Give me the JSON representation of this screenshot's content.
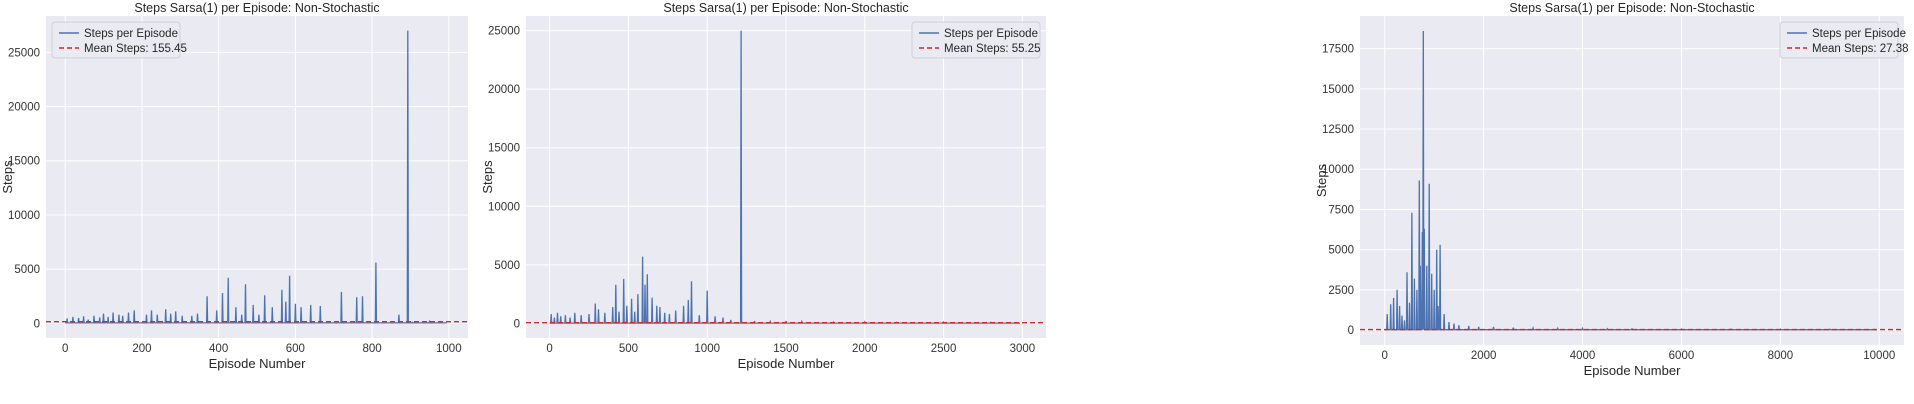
{
  "chart_data": [
    {
      "type": "line",
      "title": "Steps Sarsa(1) per Episode: Non-Stochastic",
      "xlabel": "Episode Number",
      "ylabel": "Steps",
      "xlim": [
        -50,
        1050
      ],
      "ylim": [
        -1350,
        28350
      ],
      "xticks": [
        0,
        200,
        400,
        600,
        800,
        1000
      ],
      "yticks": [
        0,
        5000,
        10000,
        15000,
        20000,
        25000
      ],
      "grid": true,
      "legend_position": "top-left",
      "series": [
        {
          "name": "Steps per Episode",
          "color": "#4c72b0",
          "baseline": 40,
          "spikes": [
            [
              5,
              450
            ],
            [
              20,
              600
            ],
            [
              35,
              500
            ],
            [
              48,
              650
            ],
            [
              60,
              350
            ],
            [
              75,
              700
            ],
            [
              90,
              550
            ],
            [
              100,
              900
            ],
            [
              112,
              600
            ],
            [
              125,
              1000
            ],
            [
              140,
              800
            ],
            [
              150,
              700
            ],
            [
              165,
              1000
            ],
            [
              180,
              1200
            ],
            [
              212,
              800
            ],
            [
              225,
              1200
            ],
            [
              240,
              800
            ],
            [
              262,
              1300
            ],
            [
              275,
              900
            ],
            [
              288,
              1100
            ],
            [
              305,
              700
            ],
            [
              330,
              700
            ],
            [
              345,
              900
            ],
            [
              370,
              2500
            ],
            [
              395,
              1200
            ],
            [
              410,
              2800
            ],
            [
              425,
              4200
            ],
            [
              445,
              1500
            ],
            [
              460,
              800
            ],
            [
              470,
              3600
            ],
            [
              490,
              1700
            ],
            [
              505,
              800
            ],
            [
              520,
              2600
            ],
            [
              540,
              1500
            ],
            [
              565,
              3100
            ],
            [
              575,
              2000
            ],
            [
              585,
              4400
            ],
            [
              600,
              1800
            ],
            [
              615,
              1500
            ],
            [
              640,
              1700
            ],
            [
              665,
              1600
            ],
            [
              720,
              2900
            ],
            [
              760,
              2400
            ],
            [
              775,
              2500
            ],
            [
              810,
              5600
            ],
            [
              870,
              800
            ],
            [
              893,
              27000
            ],
            [
              905,
              100
            ],
            [
              950,
              250
            ]
          ]
        },
        {
          "name": "Mean Steps: 155.45",
          "color": "#d62728",
          "style": "dashed",
          "value": 155.45
        }
      ]
    },
    {
      "type": "line",
      "title": "Steps Sarsa(1) per Episode: Non-Stochastic",
      "xlabel": "Episode Number",
      "ylabel": "Steps",
      "xlim": [
        -150,
        3150
      ],
      "ylim": [
        -1250,
        26250
      ],
      "xticks": [
        0,
        500,
        1000,
        1500,
        2000,
        2500,
        3000
      ],
      "yticks": [
        0,
        5000,
        10000,
        15000,
        20000,
        25000
      ],
      "grid": true,
      "legend_position": "top-right",
      "series": [
        {
          "name": "Steps per Episode",
          "color": "#4c72b0",
          "baseline": 20,
          "spikes": [
            [
              10,
              800
            ],
            [
              30,
              500
            ],
            [
              50,
              900
            ],
            [
              70,
              600
            ],
            [
              100,
              700
            ],
            [
              130,
              500
            ],
            [
              160,
              900
            ],
            [
              200,
              700
            ],
            [
              250,
              800
            ],
            [
              290,
              1700
            ],
            [
              310,
              1200
            ],
            [
              350,
              900
            ],
            [
              400,
              1400
            ],
            [
              420,
              3300
            ],
            [
              440,
              1000
            ],
            [
              470,
              3800
            ],
            [
              490,
              1500
            ],
            [
              520,
              2100
            ],
            [
              540,
              1000
            ],
            [
              560,
              2500
            ],
            [
              590,
              5700
            ],
            [
              605,
              3300
            ],
            [
              620,
              4200
            ],
            [
              650,
              2200
            ],
            [
              680,
              1500
            ],
            [
              700,
              1400
            ],
            [
              730,
              900
            ],
            [
              760,
              800
            ],
            [
              800,
              1100
            ],
            [
              850,
              1500
            ],
            [
              880,
              2000
            ],
            [
              900,
              3600
            ],
            [
              950,
              700
            ],
            [
              1000,
              2800
            ],
            [
              1050,
              600
            ],
            [
              1100,
              500
            ],
            [
              1150,
              300
            ],
            [
              1215,
              25000
            ],
            [
              1300,
              200
            ],
            [
              1400,
              150
            ],
            [
              1500,
              200
            ],
            [
              1600,
              150
            ],
            [
              1800,
              100
            ],
            [
              2000,
              120
            ],
            [
              2200,
              80
            ],
            [
              2500,
              100
            ],
            [
              2800,
              80
            ]
          ]
        },
        {
          "name": "Mean Steps: 55.25",
          "color": "#d62728",
          "style": "dashed",
          "value": 55.25
        }
      ]
    },
    {
      "type": "line",
      "title": "Steps Sarsa(1) per Episode: Non-Stochastic",
      "xlabel": "Episode Number",
      "ylabel": "Steps",
      "xlim": [
        -500,
        10500
      ],
      "ylim": [
        -930,
        19530
      ],
      "xticks": [
        0,
        2000,
        4000,
        6000,
        8000,
        10000
      ],
      "yticks": [
        0,
        2500,
        5000,
        7500,
        10000,
        12500,
        15000,
        17500
      ],
      "grid": true,
      "legend_position": "top-right",
      "series": [
        {
          "name": "Steps per Episode",
          "color": "#4c72b0",
          "baseline": 20,
          "spikes": [
            [
              50,
              1000
            ],
            [
              120,
              1600
            ],
            [
              180,
              2000
            ],
            [
              250,
              2500
            ],
            [
              300,
              1500
            ],
            [
              350,
              900
            ],
            [
              400,
              600
            ],
            [
              450,
              3600
            ],
            [
              500,
              1700
            ],
            [
              550,
              7300
            ],
            [
              600,
              3200
            ],
            [
              650,
              2500
            ],
            [
              700,
              9300
            ],
            [
              720,
              4000
            ],
            [
              760,
              6100
            ],
            [
              780,
              18600
            ],
            [
              800,
              6300
            ],
            [
              850,
              4000
            ],
            [
              900,
              9100
            ],
            [
              950,
              3500
            ],
            [
              1000,
              2500
            ],
            [
              1050,
              5000
            ],
            [
              1080,
              1500
            ],
            [
              1120,
              5300
            ],
            [
              1200,
              1000
            ],
            [
              1300,
              500
            ],
            [
              1400,
              400
            ],
            [
              1500,
              300
            ],
            [
              1700,
              250
            ],
            [
              1900,
              200
            ],
            [
              2200,
              200
            ],
            [
              2600,
              150
            ],
            [
              3000,
              120
            ],
            [
              3500,
              100
            ],
            [
              4000,
              100
            ],
            [
              4500,
              80
            ],
            [
              5000,
              80
            ],
            [
              6000,
              60
            ],
            [
              7000,
              60
            ],
            [
              8000,
              50
            ],
            [
              9000,
              50
            ],
            [
              9900,
              40
            ]
          ]
        },
        {
          "name": "Mean Steps: 27.38",
          "color": "#d62728",
          "style": "dashed",
          "value": 27.38
        }
      ]
    }
  ]
}
